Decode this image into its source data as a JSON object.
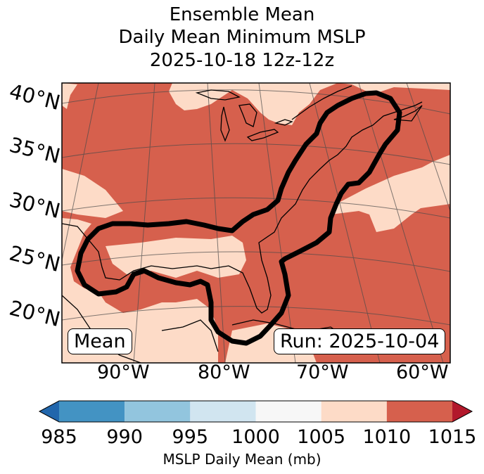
{
  "title": {
    "line1": "Ensemble Mean",
    "line2": "Daily Mean Minimum MSLP",
    "line3": "2025-10-18 12z-12z"
  },
  "map": {
    "lat_labels": [
      "40°N",
      "35°N",
      "30°N",
      "25°N",
      "20°N"
    ],
    "lon_labels": [
      "90°W",
      "80°W",
      "70°W",
      "60°W"
    ],
    "box_left": "Mean",
    "box_right": "Run: 2025-10-04",
    "fill_colors": {
      "light": "#fddbc7",
      "dark": "#d6604d",
      "contour": "#000000"
    }
  },
  "colorbar": {
    "ticks": [
      "985",
      "990",
      "995",
      "1000",
      "1005",
      "1010",
      "1015"
    ],
    "label": "MSLP Daily Mean (mb)",
    "colors": [
      "#2166ac",
      "#4393c3",
      "#92c5de",
      "#d1e5f0",
      "#f7f7f7",
      "#fddbc7",
      "#d6604d",
      "#b2182b"
    ]
  }
}
